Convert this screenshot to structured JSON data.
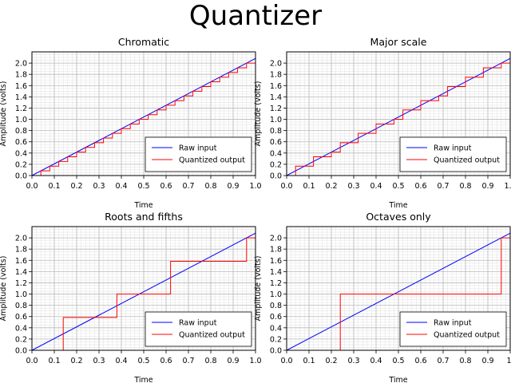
{
  "title": "Quantizer",
  "chart_data": [
    {
      "type": "line",
      "title": "Chromatic",
      "xlabel": "Time",
      "ylabel": "Amplitude (volts)",
      "xlim": [
        0,
        1.0
      ],
      "ylim": [
        0,
        2.2
      ],
      "grid": true,
      "minor_grid": true,
      "legend_position": "lower right",
      "x_ticks": [
        "0.0",
        "0.1",
        "0.2",
        "0.3",
        "0.4",
        "0.5",
        "0.6",
        "0.7",
        "0.8",
        "0.9",
        "1.0"
      ],
      "y_ticks": [
        "0.0",
        "0.2",
        "0.4",
        "0.6",
        "0.8",
        "1.0",
        "1.2",
        "1.4",
        "1.6",
        "1.8",
        "2.0"
      ],
      "series": [
        {
          "name": "Raw input",
          "color": "#0000ff",
          "style": "line",
          "x": [
            0,
            1.0
          ],
          "y": [
            0,
            2.083
          ]
        },
        {
          "name": "Quantized output",
          "color": "#ff0000",
          "style": "step",
          "step_x": [
            0.04,
            0.08,
            0.12,
            0.16,
            0.2,
            0.24,
            0.28,
            0.32,
            0.36,
            0.4,
            0.44,
            0.48,
            0.52,
            0.56,
            0.6,
            0.64,
            0.68,
            0.72,
            0.76,
            0.8,
            0.84,
            0.88,
            0.92,
            0.96
          ],
          "levels": [
            0,
            0.083,
            0.167,
            0.25,
            0.333,
            0.417,
            0.5,
            0.583,
            0.667,
            0.75,
            0.833,
            0.917,
            1.0,
            1.083,
            1.167,
            1.25,
            1.333,
            1.417,
            1.5,
            1.583,
            1.667,
            1.75,
            1.833,
            1.917,
            2.0
          ]
        }
      ]
    },
    {
      "type": "line",
      "title": "Major scale",
      "xlabel": "Time",
      "ylabel": "Amplitude (volts)",
      "xlim": [
        0,
        1.0
      ],
      "ylim": [
        0,
        2.2
      ],
      "grid": true,
      "minor_grid": true,
      "legend_position": "lower right",
      "x_ticks": [
        "0.0",
        "0.1",
        "0.2",
        "0.3",
        "0.4",
        "0.5",
        "0.6",
        "0.7",
        "0.8",
        "0.9",
        "1.0"
      ],
      "y_ticks": [
        "0.0",
        "0.2",
        "0.4",
        "0.6",
        "0.8",
        "1.0",
        "1.2",
        "1.4",
        "1.6",
        "1.8",
        "2.0"
      ],
      "series": [
        {
          "name": "Raw input",
          "color": "#0000ff",
          "style": "line",
          "x": [
            0,
            1.0
          ],
          "y": [
            0,
            2.083
          ]
        },
        {
          "name": "Quantized output",
          "color": "#ff0000",
          "style": "step",
          "step_x": [
            0.04,
            0.12,
            0.2,
            0.24,
            0.32,
            0.4,
            0.48,
            0.52,
            0.6,
            0.68,
            0.72,
            0.8,
            0.88,
            0.96
          ],
          "levels": [
            0,
            0.167,
            0.333,
            0.417,
            0.583,
            0.75,
            0.917,
            1.0,
            1.167,
            1.333,
            1.417,
            1.583,
            1.75,
            1.917,
            2.0
          ]
        }
      ]
    },
    {
      "type": "line",
      "title": "Roots and fifths",
      "xlabel": "Time",
      "ylabel": "Amplitude (volts)",
      "xlim": [
        0,
        1.0
      ],
      "ylim": [
        0,
        2.2
      ],
      "grid": true,
      "minor_grid": true,
      "legend_position": "lower right",
      "x_ticks": [
        "0.0",
        "0.1",
        "0.2",
        "0.3",
        "0.4",
        "0.5",
        "0.6",
        "0.7",
        "0.8",
        "0.9",
        "1.0"
      ],
      "y_ticks": [
        "0.0",
        "0.2",
        "0.4",
        "0.6",
        "0.8",
        "1.0",
        "1.2",
        "1.4",
        "1.6",
        "1.8",
        "2.0"
      ],
      "series": [
        {
          "name": "Raw input",
          "color": "#0000ff",
          "style": "line",
          "x": [
            0,
            1.0
          ],
          "y": [
            0,
            2.083
          ]
        },
        {
          "name": "Quantized output",
          "color": "#ff0000",
          "style": "step",
          "step_x": [
            0.14,
            0.38,
            0.62,
            0.96
          ],
          "levels": [
            0,
            0.583,
            1.0,
            1.583,
            2.0
          ]
        }
      ]
    },
    {
      "type": "line",
      "title": "Octaves only",
      "xlabel": "Time",
      "ylabel": "Amplitude (volts)",
      "xlim": [
        0,
        1.0
      ],
      "ylim": [
        0,
        2.2
      ],
      "grid": true,
      "minor_grid": true,
      "legend_position": "lower right",
      "x_ticks": [
        "0.0",
        "0.1",
        "0.2",
        "0.3",
        "0.4",
        "0.5",
        "0.6",
        "0.7",
        "0.8",
        "0.9",
        "1."
      ],
      "y_ticks": [
        "0.0",
        "0.2",
        "0.4",
        "0.6",
        "0.8",
        "1.0",
        "1.2",
        "1.4",
        "1.6",
        "1.8",
        "2.0"
      ],
      "series": [
        {
          "name": "Raw input",
          "color": "#0000ff",
          "style": "line",
          "x": [
            0,
            1.0
          ],
          "y": [
            0,
            2.083
          ]
        },
        {
          "name": "Quantized output",
          "color": "#ff0000",
          "style": "step",
          "step_x": [
            0.24,
            0.96
          ],
          "levels": [
            0,
            1.0,
            2.0
          ]
        }
      ]
    }
  ]
}
